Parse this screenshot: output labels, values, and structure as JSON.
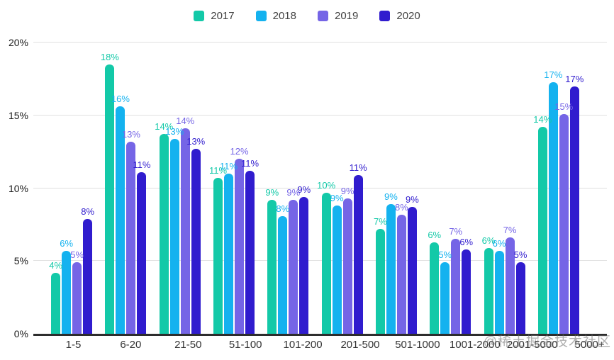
{
  "watermark": "@稀土掘金技术社区",
  "colors": {
    "background": "#ffffff",
    "grid": "#e0e0e0",
    "axis_line": "#2d2d2d",
    "tick_text": "#212121",
    "x_tick_text": "#333333",
    "legend_text": "#424242",
    "watermark_text": "#6e6e6e"
  },
  "chart_data": {
    "type": "bar",
    "title": "",
    "xlabel": "",
    "ylabel": "",
    "categories": [
      "1-5",
      "6-20",
      "21-50",
      "51-100",
      "101-200",
      "201-500",
      "501-1000",
      "1001-2000",
      "2001-5000",
      "5000+"
    ],
    "series": [
      {
        "name": "2017",
        "color": "#13C9A8",
        "values": [
          4,
          18,
          14,
          11,
          9,
          10,
          7,
          6,
          6,
          14
        ],
        "bar_heights_pct": [
          4.2,
          18.5,
          13.7,
          10.7,
          9.2,
          9.7,
          7.2,
          6.3,
          5.9,
          14.2
        ]
      },
      {
        "name": "2018",
        "color": "#14B2EF",
        "values": [
          6,
          16,
          13,
          11,
          8,
          9,
          9,
          5,
          6,
          17
        ],
        "bar_heights_pct": [
          5.7,
          15.6,
          13.4,
          11.0,
          8.1,
          8.8,
          8.9,
          4.9,
          5.7,
          17.3
        ]
      },
      {
        "name": "2019",
        "color": "#7565E6",
        "values": [
          5,
          13,
          14,
          12,
          9,
          9,
          8,
          7,
          7,
          15
        ],
        "bar_heights_pct": [
          4.9,
          13.2,
          14.1,
          12.0,
          9.2,
          9.3,
          8.2,
          6.5,
          6.6,
          15.1
        ]
      },
      {
        "name": "2020",
        "color": "#301CCE",
        "values": [
          8,
          11,
          13,
          11,
          9,
          11,
          9,
          6,
          5,
          17
        ],
        "bar_heights_pct": [
          7.9,
          11.1,
          12.7,
          11.2,
          9.4,
          10.9,
          8.7,
          5.8,
          4.9,
          17.0
        ]
      }
    ],
    "value_label_suffix": "%",
    "ylim": [
      0,
      20
    ],
    "ytick_values": [
      0,
      5,
      10,
      15,
      20
    ],
    "yticks": [
      "0%",
      "5%",
      "10%",
      "15%",
      "20%"
    ],
    "grid": true,
    "legend_position": "top"
  }
}
